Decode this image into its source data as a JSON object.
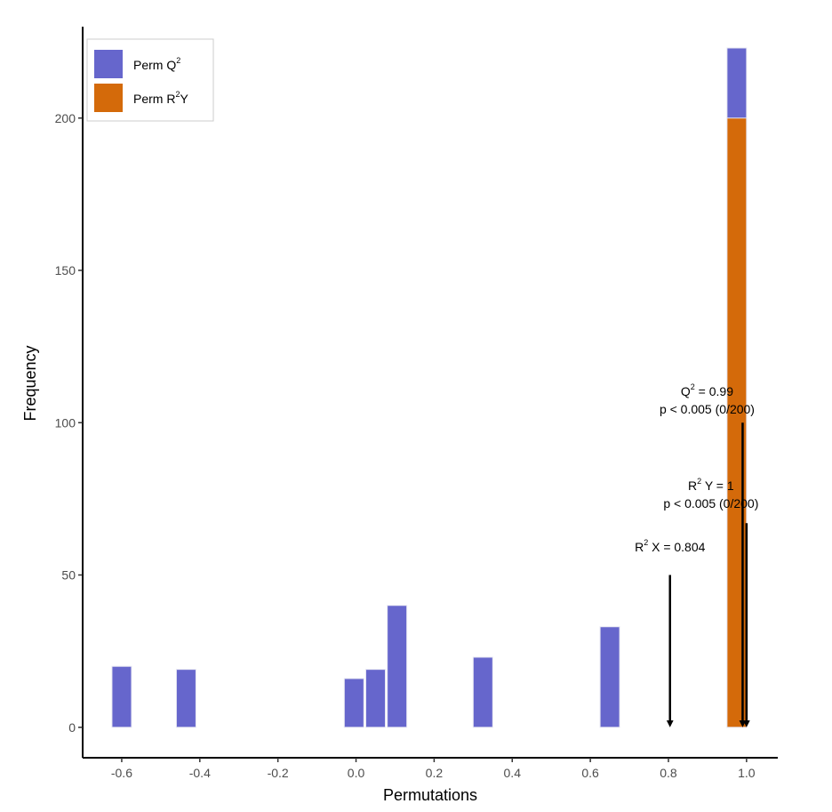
{
  "chart_data": {
    "type": "bar",
    "xlabel": "Permutations",
    "ylabel": "Frequency",
    "xlim": [
      -0.7,
      1.08
    ],
    "ylim": [
      -10,
      230
    ],
    "x_ticks": [
      "-0.6",
      "-0.4",
      "-0.2",
      "0.0",
      "0.2",
      "0.4",
      "0.6",
      "0.8",
      "1.0"
    ],
    "y_ticks": [
      "0",
      "50",
      "100",
      "150",
      "200"
    ],
    "bin_width": 0.05,
    "grid": false,
    "legend_position": "top-left",
    "series": [
      {
        "name": "Perm Q2",
        "legend_base": "Perm Q",
        "legend_sup": "2",
        "color": "#6666cc",
        "bars": [
          {
            "x": -0.6,
            "value": 20
          },
          {
            "x": -0.435,
            "value": 19
          },
          {
            "x": -0.005,
            "value": 16
          },
          {
            "x": 0.05,
            "value": 19
          },
          {
            "x": 0.105,
            "value": 40
          },
          {
            "x": 0.325,
            "value": 23
          },
          {
            "x": 0.65,
            "value": 33
          },
          {
            "x": 0.975,
            "value": 223
          }
        ]
      },
      {
        "name": "Perm R2Y",
        "legend_base": "Perm R",
        "legend_sup": "2",
        "legend_tail": "Y",
        "color": "#d46a0a",
        "bars": [
          {
            "x": 0.975,
            "value": 200
          }
        ]
      }
    ],
    "annotations": [
      {
        "id": "r2x",
        "lines": [
          {
            "pre": "R",
            "sup": "2",
            "post": " X = 0.804"
          }
        ],
        "arrow_x": 0.804,
        "arrow_from": 50,
        "arrow_to": 0
      },
      {
        "id": "q2",
        "lines": [
          {
            "pre": "Q",
            "sup": "2",
            "post": " = 0.99"
          },
          {
            "pre": "p < 0.005 (0/200)",
            "sup": "",
            "post": ""
          }
        ],
        "arrow_x": 0.99,
        "arrow_from": 100,
        "arrow_to": 0
      },
      {
        "id": "r2y",
        "lines": [
          {
            "pre": "R",
            "sup": "2",
            "post": " Y = 1"
          },
          {
            "pre": "p < 0.005 (0/200)",
            "sup": "",
            "post": ""
          }
        ],
        "arrow_x": 1.0,
        "arrow_from": 67,
        "arrow_to": 0
      }
    ]
  }
}
